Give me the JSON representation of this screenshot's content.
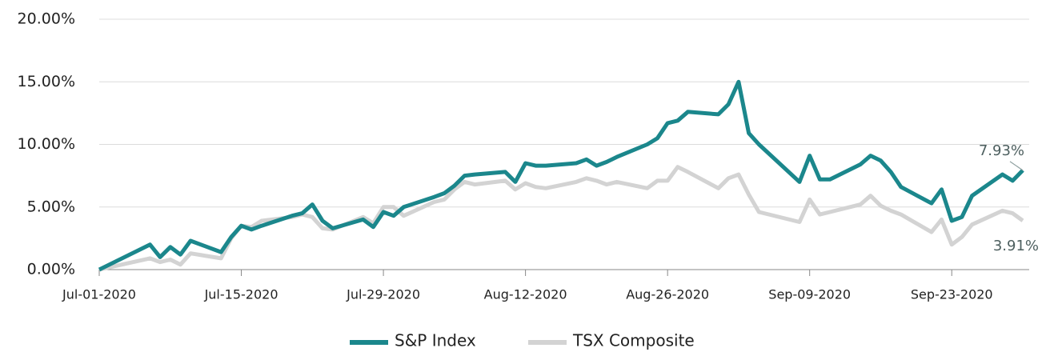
{
  "chart_data": {
    "type": "line",
    "x": [
      "2020-07-01",
      "2020-07-06",
      "2020-07-07",
      "2020-07-08",
      "2020-07-09",
      "2020-07-10",
      "2020-07-13",
      "2020-07-14",
      "2020-07-15",
      "2020-07-16",
      "2020-07-17",
      "2020-07-20",
      "2020-07-21",
      "2020-07-22",
      "2020-07-23",
      "2020-07-24",
      "2020-07-27",
      "2020-07-28",
      "2020-07-29",
      "2020-07-30",
      "2020-07-31",
      "2020-08-03",
      "2020-08-04",
      "2020-08-05",
      "2020-08-06",
      "2020-08-07",
      "2020-08-10",
      "2020-08-11",
      "2020-08-12",
      "2020-08-13",
      "2020-08-14",
      "2020-08-17",
      "2020-08-18",
      "2020-08-19",
      "2020-08-20",
      "2020-08-21",
      "2020-08-24",
      "2020-08-25",
      "2020-08-26",
      "2020-08-27",
      "2020-08-28",
      "2020-08-31",
      "2020-09-01",
      "2020-09-02",
      "2020-09-03",
      "2020-09-04",
      "2020-09-08",
      "2020-09-09",
      "2020-09-10",
      "2020-09-11",
      "2020-09-14",
      "2020-09-15",
      "2020-09-16",
      "2020-09-17",
      "2020-09-18",
      "2020-09-21",
      "2020-09-22",
      "2020-09-23",
      "2020-09-24",
      "2020-09-25",
      "2020-09-28",
      "2020-09-29",
      "2020-09-30"
    ],
    "series": [
      {
        "name": "S&P Index",
        "color": "#1b878c",
        "values": [
          0.0,
          2.0,
          1.0,
          1.8,
          1.2,
          2.3,
          1.4,
          2.6,
          3.5,
          3.2,
          3.5,
          4.3,
          4.5,
          5.2,
          3.9,
          3.3,
          4.0,
          3.4,
          4.6,
          4.3,
          5.0,
          5.8,
          6.1,
          6.7,
          7.5,
          7.6,
          7.8,
          7.0,
          8.5,
          8.3,
          8.3,
          8.5,
          8.8,
          8.3,
          8.6,
          9.0,
          10.0,
          10.5,
          11.7,
          11.9,
          12.6,
          12.4,
          13.2,
          15.0,
          10.9,
          10.0,
          7.0,
          9.1,
          7.2,
          7.2,
          8.4,
          9.1,
          8.7,
          7.8,
          6.6,
          5.3,
          6.4,
          3.9,
          4.2,
          5.9,
          7.6,
          7.1,
          7.93
        ],
        "value_labels": [
          null,
          null,
          null,
          null,
          null,
          null,
          null,
          null,
          null,
          null,
          null,
          null,
          null,
          null,
          null,
          null,
          null,
          null,
          null,
          null,
          null,
          null,
          null,
          null,
          null,
          null,
          null,
          null,
          null,
          null,
          null,
          null,
          null,
          null,
          null,
          null,
          null,
          null,
          null,
          null,
          null,
          null,
          null,
          null,
          null,
          null,
          null,
          null,
          null,
          null,
          null,
          null,
          null,
          null,
          null,
          null,
          null,
          null,
          null,
          null,
          null,
          null,
          "7.93%"
        ]
      },
      {
        "name": "TSX Composite",
        "color": "#d3d3d3",
        "values": [
          0.0,
          0.9,
          0.6,
          0.8,
          0.4,
          1.3,
          0.9,
          2.5,
          3.5,
          3.4,
          3.9,
          4.2,
          4.4,
          4.2,
          3.3,
          3.2,
          4.2,
          3.7,
          5.0,
          5.0,
          4.3,
          5.4,
          5.6,
          6.4,
          7.0,
          6.8,
          7.1,
          6.4,
          6.9,
          6.6,
          6.5,
          7.0,
          7.3,
          7.1,
          6.8,
          7.0,
          6.5,
          7.1,
          7.1,
          8.2,
          7.8,
          6.5,
          7.3,
          7.6,
          6.0,
          4.6,
          3.8,
          5.6,
          4.4,
          4.6,
          5.2,
          5.9,
          5.1,
          4.7,
          4.4,
          3.0,
          4.0,
          2.0,
          2.6,
          3.6,
          4.7,
          4.5,
          3.91
        ],
        "value_labels": [
          null,
          null,
          null,
          null,
          null,
          null,
          null,
          null,
          null,
          null,
          null,
          null,
          null,
          null,
          null,
          null,
          null,
          null,
          null,
          null,
          null,
          null,
          null,
          null,
          null,
          null,
          null,
          null,
          null,
          null,
          null,
          null,
          null,
          null,
          null,
          null,
          null,
          null,
          null,
          null,
          null,
          null,
          null,
          null,
          null,
          null,
          null,
          null,
          null,
          null,
          null,
          null,
          null,
          null,
          null,
          null,
          null,
          null,
          null,
          null,
          null,
          null,
          "3.91%"
        ]
      }
    ],
    "xlim": [
      "2020-07-01",
      "2020-09-30"
    ],
    "xticks": [
      {
        "value": "2020-07-01",
        "label": "Jul-01-2020"
      },
      {
        "value": "2020-07-15",
        "label": "Jul-15-2020"
      },
      {
        "value": "2020-07-29",
        "label": "Jul-29-2020"
      },
      {
        "value": "2020-08-12",
        "label": "Aug-12-2020"
      },
      {
        "value": "2020-08-26",
        "label": "Aug-26-2020"
      },
      {
        "value": "2020-09-09",
        "label": "Sep-09-2020"
      },
      {
        "value": "2020-09-23",
        "label": "Sep-23-2020"
      }
    ],
    "ylim": [
      0,
      20
    ],
    "yticks": [
      {
        "value": 0,
        "label": "0.00%"
      },
      {
        "value": 5,
        "label": "5.00%"
      },
      {
        "value": 10,
        "label": "10.00%"
      },
      {
        "value": 15,
        "label": "15.00%"
      },
      {
        "value": 20,
        "label": "20.00%"
      }
    ],
    "grid": true,
    "legend": "bottom"
  }
}
